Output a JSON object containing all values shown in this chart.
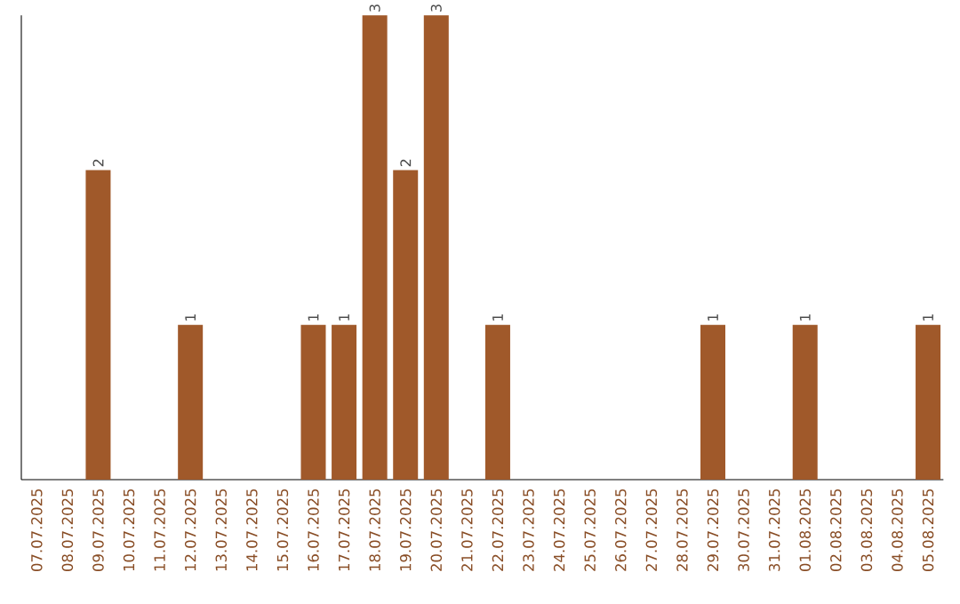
{
  "chart_data": {
    "type": "bar",
    "categories": [
      "07.07.2025",
      "08.07.2025",
      "09.07.2025",
      "10.07.2025",
      "11.07.2025",
      "12.07.2025",
      "13.07.2025",
      "14.07.2025",
      "15.07.2025",
      "16.07.2025",
      "17.07.2025",
      "18.07.2025",
      "19.07.2025",
      "20.07.2025",
      "21.07.2025",
      "22.07.2025",
      "23.07.2025",
      "24.07.2025",
      "25.07.2025",
      "26.07.2025",
      "27.07.2025",
      "28.07.2025",
      "29.07.2025",
      "30.07.2025",
      "31.07.2025",
      "01.08.2025",
      "02.08.2025",
      "03.08.2025",
      "04.08.2025",
      "05.08.2025"
    ],
    "values": [
      0,
      0,
      2,
      0,
      0,
      1,
      0,
      0,
      0,
      1,
      1,
      3,
      2,
      3,
      0,
      1,
      0,
      0,
      0,
      0,
      0,
      0,
      1,
      0,
      0,
      1,
      0,
      0,
      0,
      1
    ],
    "value_labels": [
      null,
      null,
      "2",
      null,
      null,
      "1",
      null,
      null,
      null,
      "1",
      "1",
      "3",
      "2",
      "3",
      null,
      "1",
      null,
      null,
      null,
      null,
      null,
      null,
      "1",
      null,
      null,
      "1",
      null,
      null,
      null,
      "1"
    ],
    "color": "#a0592a",
    "ylim": [
      0,
      3
    ]
  }
}
